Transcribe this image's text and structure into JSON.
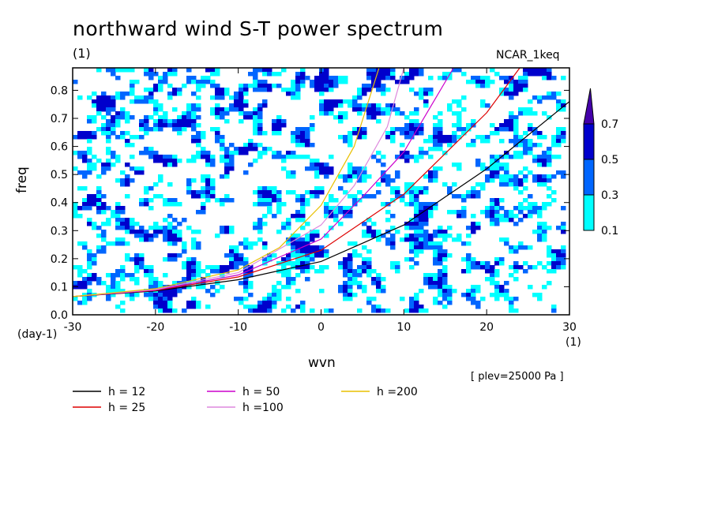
{
  "title": "northward wind S-T power spectrum",
  "unit_top": "(1)",
  "subtitle": "NCAR_1keq",
  "footer": "[ plev=25000 Pa ]",
  "colorbar": {
    "levels": [
      "0.1",
      "0.3",
      "0.5",
      "0.7"
    ],
    "colors": [
      "#00ffff",
      "#0066ff",
      "#0000cc",
      "#4400aa"
    ]
  },
  "chart_data": {
    "type": "heatmap",
    "title": "northward wind S-T power spectrum",
    "xlabel": "wvn",
    "ylabel": "freq",
    "x_unit": "(1)",
    "y_unit": "(day-1)",
    "xlim": [
      -30,
      30
    ],
    "ylim": [
      0,
      0.88
    ],
    "x_ticks": [
      -30,
      -20,
      -10,
      0,
      10,
      20,
      30
    ],
    "y_ticks": [
      0.0,
      0.1,
      0.2,
      0.3,
      0.4,
      0.5,
      0.6,
      0.7,
      0.8
    ],
    "x_tick_labels": [
      "-30",
      "-20",
      "-10",
      "0",
      "10",
      "20",
      "30"
    ],
    "y_tick_labels": [
      "0.0",
      "0.1",
      "0.2",
      "0.3",
      "0.4",
      "0.5",
      "0.6",
      "0.7",
      "0.8"
    ],
    "contour_levels": [
      0.1,
      0.3,
      0.5,
      0.7
    ],
    "series": [
      {
        "name": "h = 12",
        "color": "#000000",
        "x": [
          -30,
          -20,
          -10,
          0,
          10,
          20,
          30
        ],
        "y": [
          0.065,
          0.085,
          0.125,
          0.19,
          0.32,
          0.52,
          0.76
        ]
      },
      {
        "name": "h = 25",
        "color": "#dd0000",
        "x": [
          -30,
          -20,
          -10,
          0,
          10,
          20,
          24
        ],
        "y": [
          0.065,
          0.087,
          0.135,
          0.23,
          0.43,
          0.72,
          0.88
        ]
      },
      {
        "name": "h = 50",
        "color": "#cc00cc",
        "x": [
          -30,
          -20,
          -10,
          0,
          5,
          10,
          16
        ],
        "y": [
          0.065,
          0.088,
          0.142,
          0.27,
          0.42,
          0.58,
          0.88
        ]
      },
      {
        "name": "h =100",
        "color": "#dd88dd",
        "x": [
          -30,
          -20,
          -10,
          0,
          4,
          8,
          10
        ],
        "y": [
          0.065,
          0.09,
          0.15,
          0.32,
          0.46,
          0.67,
          0.88
        ]
      },
      {
        "name": "h =200",
        "color": "#e8c000",
        "x": [
          -30,
          -20,
          -10,
          -5,
          0,
          4,
          7
        ],
        "y": [
          0.065,
          0.093,
          0.16,
          0.24,
          0.39,
          0.6,
          0.88
        ]
      }
    ]
  }
}
